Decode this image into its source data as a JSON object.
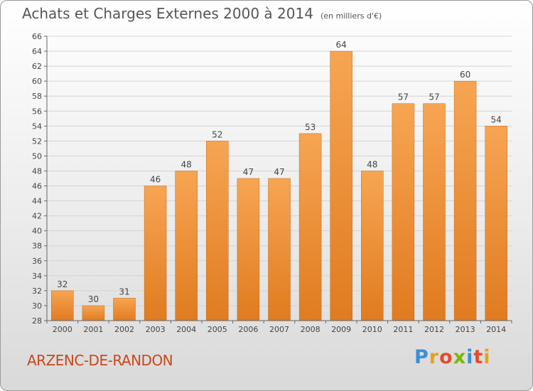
{
  "header": {
    "title": "Achats et Charges Externes 2000 à 2014",
    "subtitle": "(en milliers d'€)"
  },
  "footer": {
    "commune": "ARZENC-DE-RANDON",
    "brand": "Proxiti",
    "brand_colors": [
      "#3a8fd6",
      "#e7a21c",
      "#e64b2c",
      "#7ab800",
      "#3a8fd6",
      "#e64b2c",
      "#e7a21c"
    ]
  },
  "chart_data": {
    "type": "bar",
    "title": "Achats et Charges Externes 2000 à 2014",
    "subtitle": "(en milliers d'€)",
    "categories": [
      "2000",
      "2001",
      "2002",
      "2003",
      "2004",
      "2005",
      "2006",
      "2007",
      "2008",
      "2009",
      "2010",
      "2011",
      "2012",
      "2013",
      "2014"
    ],
    "values": [
      32,
      30,
      31,
      46,
      48,
      52,
      47,
      47,
      53,
      64,
      48,
      57,
      57,
      60,
      54
    ],
    "ylim": [
      28,
      66
    ],
    "yticks": [
      28,
      30,
      32,
      34,
      36,
      38,
      40,
      42,
      44,
      46,
      48,
      50,
      52,
      54,
      56,
      58,
      60,
      62,
      64,
      66
    ],
    "grid": true,
    "bar_color_top": "#f7a553",
    "bar_color_bottom": "#e07b20"
  }
}
